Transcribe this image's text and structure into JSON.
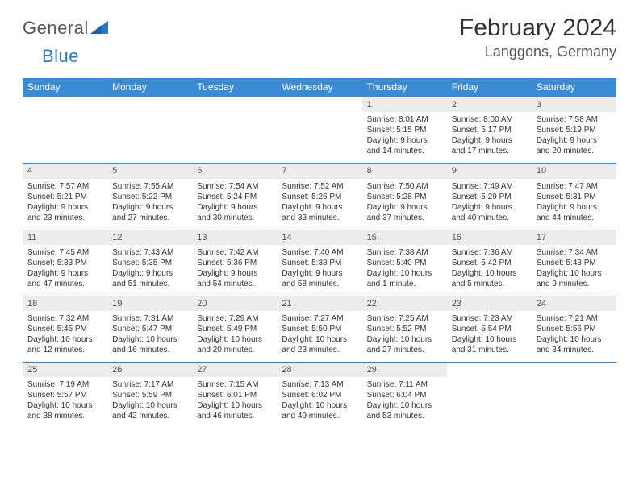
{
  "logo": {
    "text1": "General",
    "text2": "Blue"
  },
  "title": "February 2024",
  "location": "Langgons, Germany",
  "colors": {
    "header_bg": "#3b8bd4",
    "daynum_bg": "#ececec",
    "text": "#333333",
    "rule": "#3b8bd4"
  },
  "weekday_labels": [
    "Sunday",
    "Monday",
    "Tuesday",
    "Wednesday",
    "Thursday",
    "Friday",
    "Saturday"
  ],
  "weeks": [
    [
      null,
      null,
      null,
      null,
      {
        "n": "1",
        "sr": "8:01 AM",
        "ss": "5:15 PM",
        "dl": "9 hours and 14 minutes."
      },
      {
        "n": "2",
        "sr": "8:00 AM",
        "ss": "5:17 PM",
        "dl": "9 hours and 17 minutes."
      },
      {
        "n": "3",
        "sr": "7:58 AM",
        "ss": "5:19 PM",
        "dl": "9 hours and 20 minutes."
      }
    ],
    [
      {
        "n": "4",
        "sr": "7:57 AM",
        "ss": "5:21 PM",
        "dl": "9 hours and 23 minutes."
      },
      {
        "n": "5",
        "sr": "7:55 AM",
        "ss": "5:22 PM",
        "dl": "9 hours and 27 minutes."
      },
      {
        "n": "6",
        "sr": "7:54 AM",
        "ss": "5:24 PM",
        "dl": "9 hours and 30 minutes."
      },
      {
        "n": "7",
        "sr": "7:52 AM",
        "ss": "5:26 PM",
        "dl": "9 hours and 33 minutes."
      },
      {
        "n": "8",
        "sr": "7:50 AM",
        "ss": "5:28 PM",
        "dl": "9 hours and 37 minutes."
      },
      {
        "n": "9",
        "sr": "7:49 AM",
        "ss": "5:29 PM",
        "dl": "9 hours and 40 minutes."
      },
      {
        "n": "10",
        "sr": "7:47 AM",
        "ss": "5:31 PM",
        "dl": "9 hours and 44 minutes."
      }
    ],
    [
      {
        "n": "11",
        "sr": "7:45 AM",
        "ss": "5:33 PM",
        "dl": "9 hours and 47 minutes."
      },
      {
        "n": "12",
        "sr": "7:43 AM",
        "ss": "5:35 PM",
        "dl": "9 hours and 51 minutes."
      },
      {
        "n": "13",
        "sr": "7:42 AM",
        "ss": "5:36 PM",
        "dl": "9 hours and 54 minutes."
      },
      {
        "n": "14",
        "sr": "7:40 AM",
        "ss": "5:38 PM",
        "dl": "9 hours and 58 minutes."
      },
      {
        "n": "15",
        "sr": "7:38 AM",
        "ss": "5:40 PM",
        "dl": "10 hours and 1 minute."
      },
      {
        "n": "16",
        "sr": "7:36 AM",
        "ss": "5:42 PM",
        "dl": "10 hours and 5 minutes."
      },
      {
        "n": "17",
        "sr": "7:34 AM",
        "ss": "5:43 PM",
        "dl": "10 hours and 9 minutes."
      }
    ],
    [
      {
        "n": "18",
        "sr": "7:32 AM",
        "ss": "5:45 PM",
        "dl": "10 hours and 12 minutes."
      },
      {
        "n": "19",
        "sr": "7:31 AM",
        "ss": "5:47 PM",
        "dl": "10 hours and 16 minutes."
      },
      {
        "n": "20",
        "sr": "7:29 AM",
        "ss": "5:49 PM",
        "dl": "10 hours and 20 minutes."
      },
      {
        "n": "21",
        "sr": "7:27 AM",
        "ss": "5:50 PM",
        "dl": "10 hours and 23 minutes."
      },
      {
        "n": "22",
        "sr": "7:25 AM",
        "ss": "5:52 PM",
        "dl": "10 hours and 27 minutes."
      },
      {
        "n": "23",
        "sr": "7:23 AM",
        "ss": "5:54 PM",
        "dl": "10 hours and 31 minutes."
      },
      {
        "n": "24",
        "sr": "7:21 AM",
        "ss": "5:56 PM",
        "dl": "10 hours and 34 minutes."
      }
    ],
    [
      {
        "n": "25",
        "sr": "7:19 AM",
        "ss": "5:57 PM",
        "dl": "10 hours and 38 minutes."
      },
      {
        "n": "26",
        "sr": "7:17 AM",
        "ss": "5:59 PM",
        "dl": "10 hours and 42 minutes."
      },
      {
        "n": "27",
        "sr": "7:15 AM",
        "ss": "6:01 PM",
        "dl": "10 hours and 46 minutes."
      },
      {
        "n": "28",
        "sr": "7:13 AM",
        "ss": "6:02 PM",
        "dl": "10 hours and 49 minutes."
      },
      {
        "n": "29",
        "sr": "7:11 AM",
        "ss": "6:04 PM",
        "dl": "10 hours and 53 minutes."
      },
      null,
      null
    ]
  ],
  "labels": {
    "sunrise": "Sunrise: ",
    "sunset": "Sunset: ",
    "daylight": "Daylight: "
  }
}
